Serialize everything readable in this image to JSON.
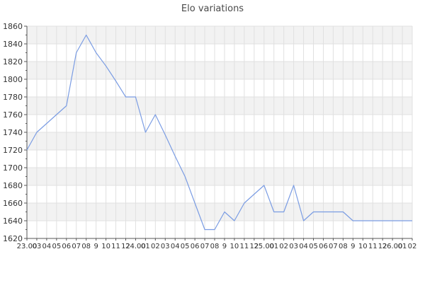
{
  "title": "Elo variations",
  "chart_data": {
    "type": "line",
    "title": "Elo variations",
    "x_labels": [
      "23.00",
      "03",
      "04",
      "05",
      "06",
      "07",
      "08",
      "9",
      "10",
      "11",
      "12",
      "24.00",
      "01",
      "02",
      "03",
      "04",
      "05",
      "06",
      "07",
      "08",
      "9",
      "10",
      "11",
      "12",
      "25.00",
      "01",
      "02",
      "03",
      "04",
      "05",
      "06",
      "07",
      "08",
      "9",
      "10",
      "11",
      "12",
      "26.00",
      "01",
      "02"
    ],
    "values": [
      1720,
      1740,
      1750,
      1760,
      1770,
      1830,
      1850,
      1830,
      1815,
      1798,
      1780,
      1780,
      1740,
      1760,
      1737,
      1713,
      1690,
      1660,
      1630,
      1630,
      1650,
      1640,
      1660,
      1670,
      1680,
      1650,
      1650,
      1680,
      1640,
      1650,
      1650,
      1650,
      1650,
      1640,
      1640,
      1640,
      1640,
      1640,
      1640,
      1640
    ],
    "ylim": [
      1620,
      1860
    ],
    "ytick_step": 20,
    "ytick_minor_step": 10,
    "grid": true,
    "legend": "none",
    "line_color": "#7a9ce3",
    "band_color": "#f2f2f2",
    "grid_color": "#e0e0e0",
    "axis_color": "#555555",
    "label_color": "#333333"
  }
}
